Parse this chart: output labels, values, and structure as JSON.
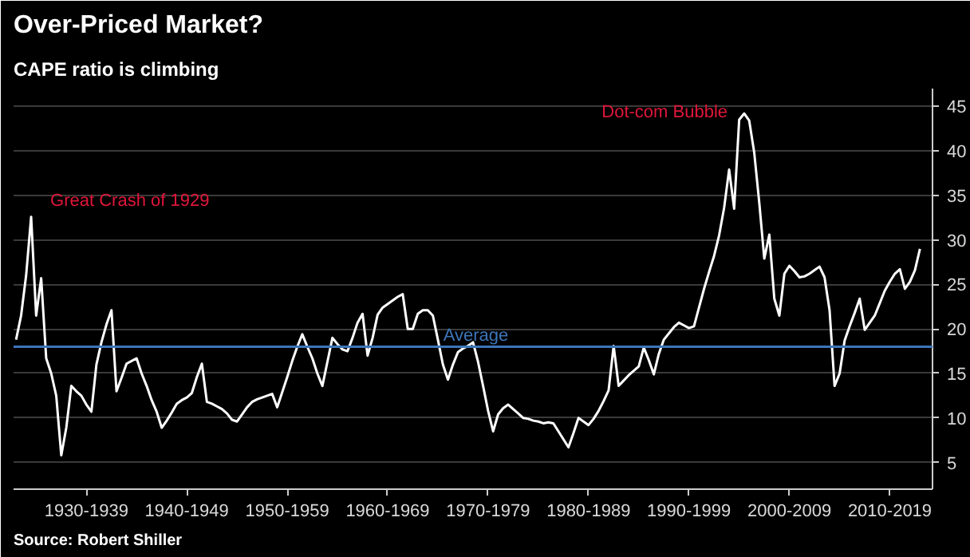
{
  "chart_data": {
    "type": "line",
    "title": "Over-Priced Market?",
    "subtitle": "CAPE ratio is climbing",
    "categories": [
      null,
      null,
      null,
      null,
      null,
      null,
      null,
      null,
      null,
      null,
      null,
      null,
      null,
      null,
      "1930-1939",
      null,
      null,
      null,
      null,
      null,
      null,
      null,
      null,
      null,
      null,
      null,
      null,
      null,
      null,
      null,
      null,
      null,
      null,
      null,
      "1940-1949",
      null,
      null,
      null,
      null,
      null,
      null,
      null,
      null,
      null,
      null,
      null,
      null,
      null,
      null,
      null,
      null,
      null,
      null,
      null,
      "1950-1959",
      null,
      null,
      null,
      null,
      null,
      null,
      null,
      null,
      null,
      null,
      null,
      null,
      null,
      null,
      null,
      null,
      null,
      null,
      null,
      "1960-1969",
      null,
      null,
      null,
      null,
      null,
      null,
      null,
      null,
      null,
      null,
      null,
      null,
      null,
      null,
      null,
      null,
      null,
      null,
      null,
      "1970-1979",
      null,
      null,
      null,
      null,
      null,
      null,
      null,
      null,
      null,
      null,
      null,
      null,
      null,
      null,
      null,
      null,
      null,
      null,
      null,
      "1980-1989",
      null,
      null,
      null,
      null,
      null,
      null,
      null,
      null,
      null,
      null,
      null,
      null,
      null,
      null,
      null,
      null,
      null,
      null,
      null,
      "1990-1999",
      null,
      null,
      null,
      null,
      null,
      null,
      null,
      null,
      null,
      null,
      null,
      null,
      null,
      null,
      null,
      null,
      null,
      null,
      null,
      "2000-2009",
      null,
      null,
      null,
      null,
      null,
      null,
      null,
      null,
      null,
      null,
      null,
      null,
      null,
      null,
      null,
      null,
      null,
      null,
      null,
      "2010-2019",
      null,
      null,
      null,
      null,
      null,
      null
    ],
    "series": [
      {
        "color": "#ffffff",
        "values": [
          18.8,
          21.5,
          26,
          32.6,
          21.5,
          25.7,
          16.7,
          15,
          12.5,
          5.8,
          8.9,
          13.6,
          13,
          12.5,
          11.5,
          10.7,
          16,
          18.5,
          20.5,
          22.1,
          13.0,
          14.5,
          16.1,
          16.4,
          16.7,
          15,
          13.6,
          12,
          10.7,
          8.9,
          9.7,
          10.6,
          11.6,
          12,
          12.3,
          12.8,
          14.6,
          16.1,
          11.8,
          11.6,
          11.3,
          11.0,
          10.5,
          9.8,
          9.6,
          10.4,
          11.2,
          11.8,
          12.1,
          12.3,
          12.5,
          12.7,
          11.2,
          12.9,
          14.6,
          16.4,
          18,
          19.4,
          18,
          16.7,
          15,
          13.6,
          16.3,
          19.0,
          18.3,
          17.7,
          17.5,
          19,
          20.7,
          21.7,
          17.0,
          19,
          21.6,
          22.4,
          22.8,
          23.2,
          23.6,
          23.9,
          20,
          20,
          21.7,
          22.1,
          22.1,
          21.5,
          18.8,
          16,
          14.3,
          16,
          17.4,
          17.8,
          18.1,
          18.5,
          16.3,
          13.6,
          10.8,
          8.5,
          10.4,
          11.1,
          11.5,
          11,
          10.5,
          10.0,
          9.9,
          9.7,
          9.6,
          9.4,
          9.5,
          9.4,
          8.5,
          7.6,
          6.7,
          8.3,
          10.0,
          9.6,
          9.2,
          9.9,
          10.8,
          11.9,
          13.1,
          18.1,
          13.6,
          14.2,
          14.8,
          15.3,
          15.8,
          17.9,
          16.5,
          14.9,
          17.2,
          18.8,
          19.5,
          20.2,
          20.7,
          20.4,
          20.1,
          20.3,
          22.4,
          24.5,
          26.4,
          28.2,
          30.5,
          33.6,
          37.9,
          33.5,
          43.5,
          44.2,
          43.4,
          39.8,
          34.2,
          27.9,
          30.6,
          23.4,
          21.5,
          26.2,
          27.1,
          26.5,
          25.8,
          25.9,
          26.2,
          26.6,
          27.0,
          25.8,
          22.1,
          13.6,
          15,
          18.7,
          20.3,
          21.8,
          23.4,
          19.9,
          20.7,
          21.5,
          22.9,
          24.3,
          25.3,
          26.2,
          26.7,
          24.5,
          25.3,
          26.6,
          29.0
        ]
      }
    ],
    "ylim": [
      2,
      47
    ],
    "yticks": [
      5,
      10,
      15,
      20,
      25,
      30,
      35,
      40,
      45
    ],
    "grid": "y",
    "marker": "none",
    "line_style": "solid",
    "ref_lines": [
      {
        "axis": "y",
        "value": 18,
        "label": "Average",
        "color": "#3d75b8"
      }
    ],
    "annotations": [
      "Great Crash of 1929",
      "Dot-com Bubble",
      "Source: Robert Shiller"
    ]
  }
}
